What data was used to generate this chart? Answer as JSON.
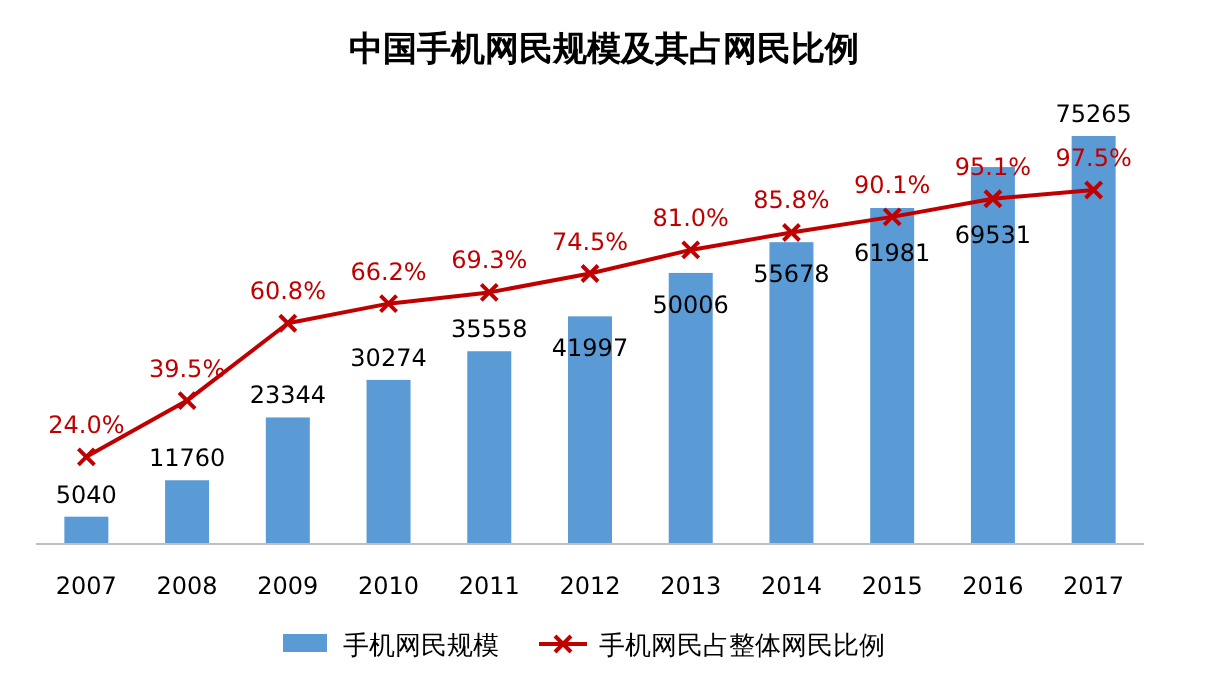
{
  "chart_data": {
    "type": "bar",
    "title": "中国手机网民规模及其占网民比例",
    "categories": [
      "2007",
      "2008",
      "2009",
      "2010",
      "2011",
      "2012",
      "2013",
      "2014",
      "2015",
      "2016",
      "2017"
    ],
    "series": [
      {
        "name": "手机网民规模",
        "color": "#5b9bd5",
        "values": [
          5040,
          11760,
          23344,
          30274,
          35558,
          41997,
          50006,
          55678,
          61981,
          69531,
          75265
        ],
        "value_labels": [
          "5040",
          "11760",
          "23344",
          "30274",
          "35558",
          "41997",
          "50006",
          "55678",
          "61981",
          "69531",
          "75265"
        ]
      },
      {
        "name": "手机网民占整体网民比例",
        "type": "line",
        "axis": "y2",
        "color": "#c00000",
        "marker": "cross",
        "values": [
          24.0,
          39.5,
          60.8,
          66.2,
          69.3,
          74.5,
          81.0,
          85.8,
          90.1,
          95.1,
          97.5
        ],
        "value_labels": [
          "24.0%",
          "39.5%",
          "60.8%",
          "66.2%",
          "69.3%",
          "74.5%",
          "81.0%",
          "85.8%",
          "90.1%",
          "95.1%",
          "97.5%"
        ]
      }
    ],
    "legend": "bottom",
    "grid": false
  }
}
